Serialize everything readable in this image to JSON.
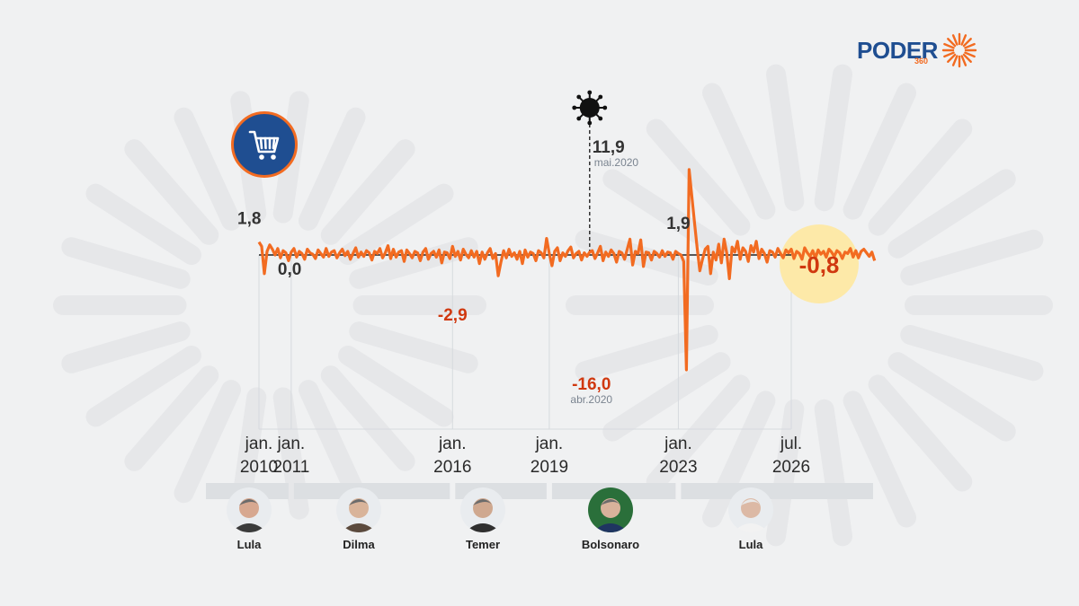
{
  "brand": {
    "name": "PODER",
    "sub": "360",
    "accent": "#f26b21",
    "primary": "#1f4e91"
  },
  "icons": {
    "cart": "shopping-cart-icon",
    "virus": "virus-icon"
  },
  "chart_data": {
    "type": "line",
    "x_start": "jan.2010",
    "x_end": "jul.2026",
    "baseline": 0,
    "series": [
      {
        "values": [
          1.8,
          1.2,
          -2.6,
          0.5,
          1.4,
          0.8,
          0.0,
          0.9,
          -0.4,
          0.6,
          0.3,
          -0.8,
          0.4,
          0.9,
          -0.3,
          0.5,
          0.2,
          -0.6,
          0.8,
          0.3,
          0.1,
          -0.5,
          0.7,
          0.2,
          -0.3,
          0.9,
          -0.2,
          0.4,
          0.6,
          -0.4,
          0.3,
          0.8,
          -0.1,
          0.5,
          -0.6,
          0.2,
          1.0,
          -0.3,
          0.4,
          -0.2,
          0.6,
          0.3,
          -0.7,
          0.5,
          0.2,
          0.9,
          -0.4,
          0.3,
          1.3,
          -0.5,
          0.8,
          -0.3,
          0.4,
          0.6,
          -0.9,
          0.7,
          0.2,
          -0.4,
          0.5,
          0.3,
          -0.8,
          0.4,
          0.9,
          -0.6,
          0.2,
          0.5,
          -0.3,
          0.7,
          -1.1,
          0.4,
          0.3,
          -0.5,
          1.2,
          -0.2,
          0.5,
          -0.7,
          0.8,
          0.1,
          -0.4,
          0.6,
          -0.3,
          0.5,
          -1.2,
          0.4,
          -0.6,
          0.3,
          0.9,
          -0.5,
          0.2,
          -2.9,
          -1.0,
          0.6,
          -0.4,
          0.8,
          -0.2,
          0.3,
          -0.6,
          0.5,
          -1.2,
          0.7,
          -0.3,
          0.4,
          0.2,
          -0.8,
          0.6,
          0.3,
          -0.4,
          2.3,
          0.2,
          -1.5,
          0.5,
          1.0,
          -0.8,
          0.3,
          -0.2,
          0.6,
          1.1,
          -0.4,
          0.2,
          0.5,
          -0.7,
          0.3,
          -0.2,
          0.4,
          0.6,
          -0.5,
          0.3,
          1.2,
          -0.8,
          0.4,
          -0.2,
          0.7,
          0.2,
          -1.0,
          0.5,
          0.3,
          -0.6,
          0.8,
          2.2,
          -1.4,
          0.5,
          0.2,
          2.1,
          -1.6,
          0.4,
          0.3,
          -0.7,
          0.5,
          0.2,
          -0.3,
          0.6,
          -0.2,
          0.4,
          0.3,
          -0.6,
          0.5,
          0.2,
          0.0,
          -0.9,
          -16.0,
          11.9,
          8.2,
          4.5,
          0.9,
          -2.2,
          -0.6,
          0.8,
          1.2,
          -2.6,
          0.4,
          -0.7,
          1.5,
          -1.1,
          2.2,
          0.3,
          -3.3,
          1.1,
          0.4,
          1.9,
          -0.6,
          1.0,
          0.5,
          -0.9,
          1.3,
          0.4,
          1.9,
          -0.5,
          0.8,
          0.2,
          -1.0,
          0.6,
          0.4,
          -0.3,
          0.9,
          0.2,
          -0.4,
          0.7,
          0.3,
          0.8,
          -0.5,
          0.5,
          0.2,
          -0.6,
          1.0,
          0.3,
          -0.2,
          0.6,
          -0.4,
          0.7,
          0.1,
          0.5,
          -0.3,
          0.8,
          0.4,
          -0.2,
          0.6,
          0.3,
          -0.5,
          0.4,
          0.2,
          0.9,
          -0.3,
          0.6,
          -0.4,
          0.5,
          0.8,
          0.3,
          -0.2,
          0.4,
          -0.8
        ]
      }
    ],
    "annotations": [
      {
        "label": "1,8",
        "date": "jan.2010",
        "value": 1.8
      },
      {
        "label": "0,0",
        "date": "jan.2011",
        "value": 0.0
      },
      {
        "label": "-2,9",
        "date": "jan.2016",
        "value": -2.9
      },
      {
        "label": "11,9",
        "sub": "mai.2020",
        "date": "mai.2020",
        "value": 11.9
      },
      {
        "label": "-16,0",
        "sub": "abr.2020",
        "date": "abr.2020",
        "value": -16.0
      },
      {
        "label": "1,9",
        "date": "jan.2023",
        "value": 1.9
      },
      {
        "label": "-0,8",
        "date": "jul.2026",
        "value": -0.8
      }
    ],
    "x_ticks": [
      {
        "top": "jan.",
        "bottom": "2010",
        "date": "jan.2010"
      },
      {
        "top": "jan.",
        "bottom": "2011",
        "date": "jan.2011"
      },
      {
        "top": "jan.",
        "bottom": "2016",
        "date": "jan.2016"
      },
      {
        "top": "jan.",
        "bottom": "2019",
        "date": "jan.2019"
      },
      {
        "top": "jan.",
        "bottom": "2023",
        "date": "jan.2023"
      },
      {
        "top": "jul.",
        "bottom": "2026",
        "date": "jul.2026"
      }
    ],
    "colors": {
      "line": "#f26b21",
      "positive_label": "#333333",
      "negative_label": "#d0380f",
      "highlight": "#fde9a8"
    }
  },
  "presidents": [
    {
      "name": "Lula",
      "start": "jan.2010",
      "end": "jan.2011"
    },
    {
      "name": "Dilma",
      "start": "jan.2011",
      "end": "jan.2016"
    },
    {
      "name": "Temer",
      "start": "jan.2016",
      "end": "jan.2019"
    },
    {
      "name": "Bolsonaro",
      "start": "jan.2019",
      "end": "jan.2023"
    },
    {
      "name": "Lula",
      "start": "jan.2023",
      "end": "jul.2026"
    }
  ]
}
